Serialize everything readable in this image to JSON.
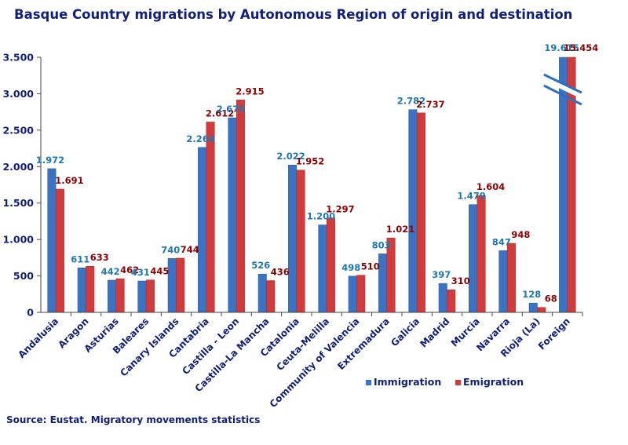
{
  "title": "Basque Country migrations by Autonomous Region of origin and destination",
  "source": "Source: Eustat. Migratory movements statistics",
  "colors": {
    "immigration": "#3a72c4",
    "emigration": "#d23b3b",
    "axis_text": "#0f1f7a",
    "break": "#2f6fc0"
  },
  "chart_data": {
    "type": "bar",
    "title": "Basque Country migrations by Autonomous Region of origin and destination",
    "xlabel": "",
    "ylabel": "",
    "ylim": [
      0,
      3500
    ],
    "yticks": [
      0,
      500,
      1000,
      1500,
      2000,
      2500,
      3000,
      3500
    ],
    "ytick_labels": [
      "0",
      "500",
      "1.000",
      "1.500",
      "2.000",
      "2.500",
      "3.000",
      "3.500"
    ],
    "axis_break": true,
    "legend": "bottom-center",
    "categories": [
      "Andalusia",
      "Aragon",
      "Asturias",
      "Baleares",
      "Canary Islands",
      "Cantabria",
      "Castilla - Leon",
      "Castilla-La Mancha",
      "Catalonia",
      "Ceuta-Melilla",
      "Community of Valencia",
      "Extremadura",
      "Galicia",
      "Madrid",
      "Murcia",
      "Navarra",
      "Rioja (La)",
      "Foreign"
    ],
    "series": [
      {
        "name": "Immigration",
        "values": [
          1972,
          611,
          442,
          431,
          740,
          2264,
          2670,
          526,
          2022,
          1200,
          498,
          803,
          2782,
          397,
          1479,
          847,
          128,
          19615
        ],
        "labels": [
          "1.972",
          "611",
          "442",
          "431",
          "740",
          "2.264",
          "2.670",
          "526",
          "2.022",
          "1.200",
          "498",
          "803",
          "2.782",
          "397",
          "1.479",
          "847",
          "128",
          "19.615"
        ]
      },
      {
        "name": "Emigration",
        "values": [
          1691,
          633,
          462,
          445,
          744,
          2612,
          2915,
          436,
          1952,
          1297,
          510,
          1021,
          2737,
          310,
          1604,
          948,
          68,
          15454
        ],
        "labels": [
          "1.691",
          "633",
          "462",
          "445",
          "744",
          "2.612",
          "2.915",
          "436",
          "1.952",
          "1.297",
          "510",
          "1.021",
          "2.737",
          "310",
          "1.604",
          "948",
          "68",
          "15.454"
        ]
      }
    ]
  }
}
